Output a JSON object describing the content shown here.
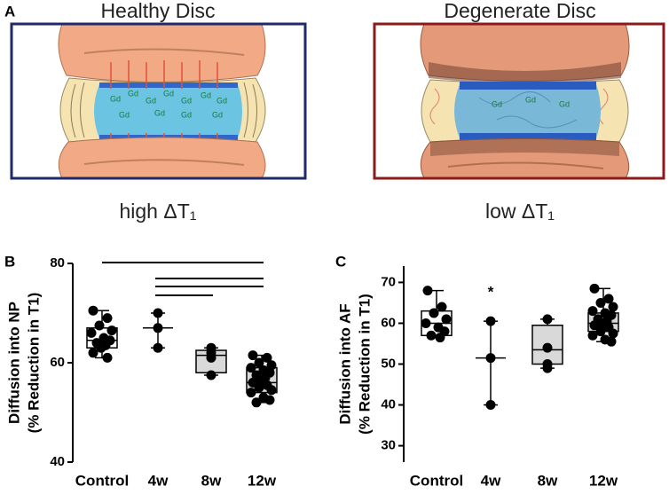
{
  "panel_a": {
    "label": "A",
    "healthy": {
      "title": "Healthy Disc",
      "caption": "high ΔT₁",
      "gd": [
        "Gd",
        "Gd",
        "Gd",
        "Gd",
        "Gd",
        "Gd",
        "Gd",
        "Gd",
        "Gd",
        "Gd",
        "Gd"
      ]
    },
    "degenerate": {
      "title": "Degenerate Disc",
      "caption": "low ΔT₁",
      "gd": [
        "Gd",
        "Gd",
        "Gd"
      ]
    }
  },
  "chart_data": [
    {
      "type": "box",
      "label": "B",
      "ylabel": [
        "Diffusion into NP",
        "(% Reduction in T1)"
      ],
      "categories": [
        "Control",
        "4w",
        "8w",
        "12w"
      ],
      "ylim": [
        40,
        80
      ],
      "yticks": [
        40,
        60,
        80
      ],
      "colors": [
        "#ffffff",
        "#ffffff",
        "#d9d9d9",
        "#d9d9d9"
      ],
      "boxes": [
        {
          "min": 61,
          "q1": 63,
          "median": 64.5,
          "q3": 67,
          "max": 70.5
        },
        {
          "min": 63,
          "median": 67,
          "max": 70
        },
        {
          "min": 57.5,
          "q1": 58,
          "median": 61.5,
          "q3": 62.5,
          "max": 63
        },
        {
          "min": 52,
          "q1": 54,
          "median": 56,
          "q3": 59,
          "max": 61.5
        }
      ],
      "points": [
        [
          70.5,
          69,
          67.5,
          66.5,
          66,
          65,
          64.5,
          64,
          63.5,
          63,
          62,
          61
        ],
        [
          70,
          67,
          63
        ],
        [
          63,
          62,
          61,
          57.5
        ],
        [
          61.5,
          61,
          60,
          59.5,
          59,
          58.5,
          58,
          57.5,
          57,
          56.5,
          56,
          55.5,
          55,
          54.5,
          54,
          53,
          52.5,
          52
        ]
      ]
    },
    {
      "type": "box",
      "label": "C",
      "ylabel": [
        "Diffusion into AF",
        "(% Reduction in T1)"
      ],
      "categories": [
        "Control",
        "4w",
        "8w",
        "12w"
      ],
      "ylim": [
        26,
        74
      ],
      "yticks": [
        30,
        40,
        50,
        60,
        70
      ],
      "colors": [
        "#ffffff",
        "#ffffff",
        "#d9d9d9",
        "#d9d9d9"
      ],
      "annotation": "*",
      "boxes": [
        {
          "min": 56.5,
          "q1": 57,
          "median": 60,
          "q3": 63,
          "max": 68
        },
        {
          "min": 40,
          "median": 51.5,
          "max": 60.5
        },
        {
          "min": 49,
          "q1": 50,
          "median": 53.5,
          "q3": 59.5,
          "max": 61
        },
        {
          "min": 55.5,
          "q1": 58,
          "median": 60,
          "q3": 62.5,
          "max": 68.5
        }
      ],
      "points": [
        [
          68,
          64,
          62.5,
          61,
          60,
          59,
          58,
          57,
          56.5
        ],
        [
          60.5,
          51.5,
          40
        ],
        [
          61,
          54,
          50,
          49
        ],
        [
          68.5,
          66,
          65,
          64,
          63,
          62.5,
          62,
          61,
          60.5,
          60,
          59.5,
          59,
          58,
          57.5,
          57,
          56,
          55.5
        ]
      ]
    }
  ]
}
